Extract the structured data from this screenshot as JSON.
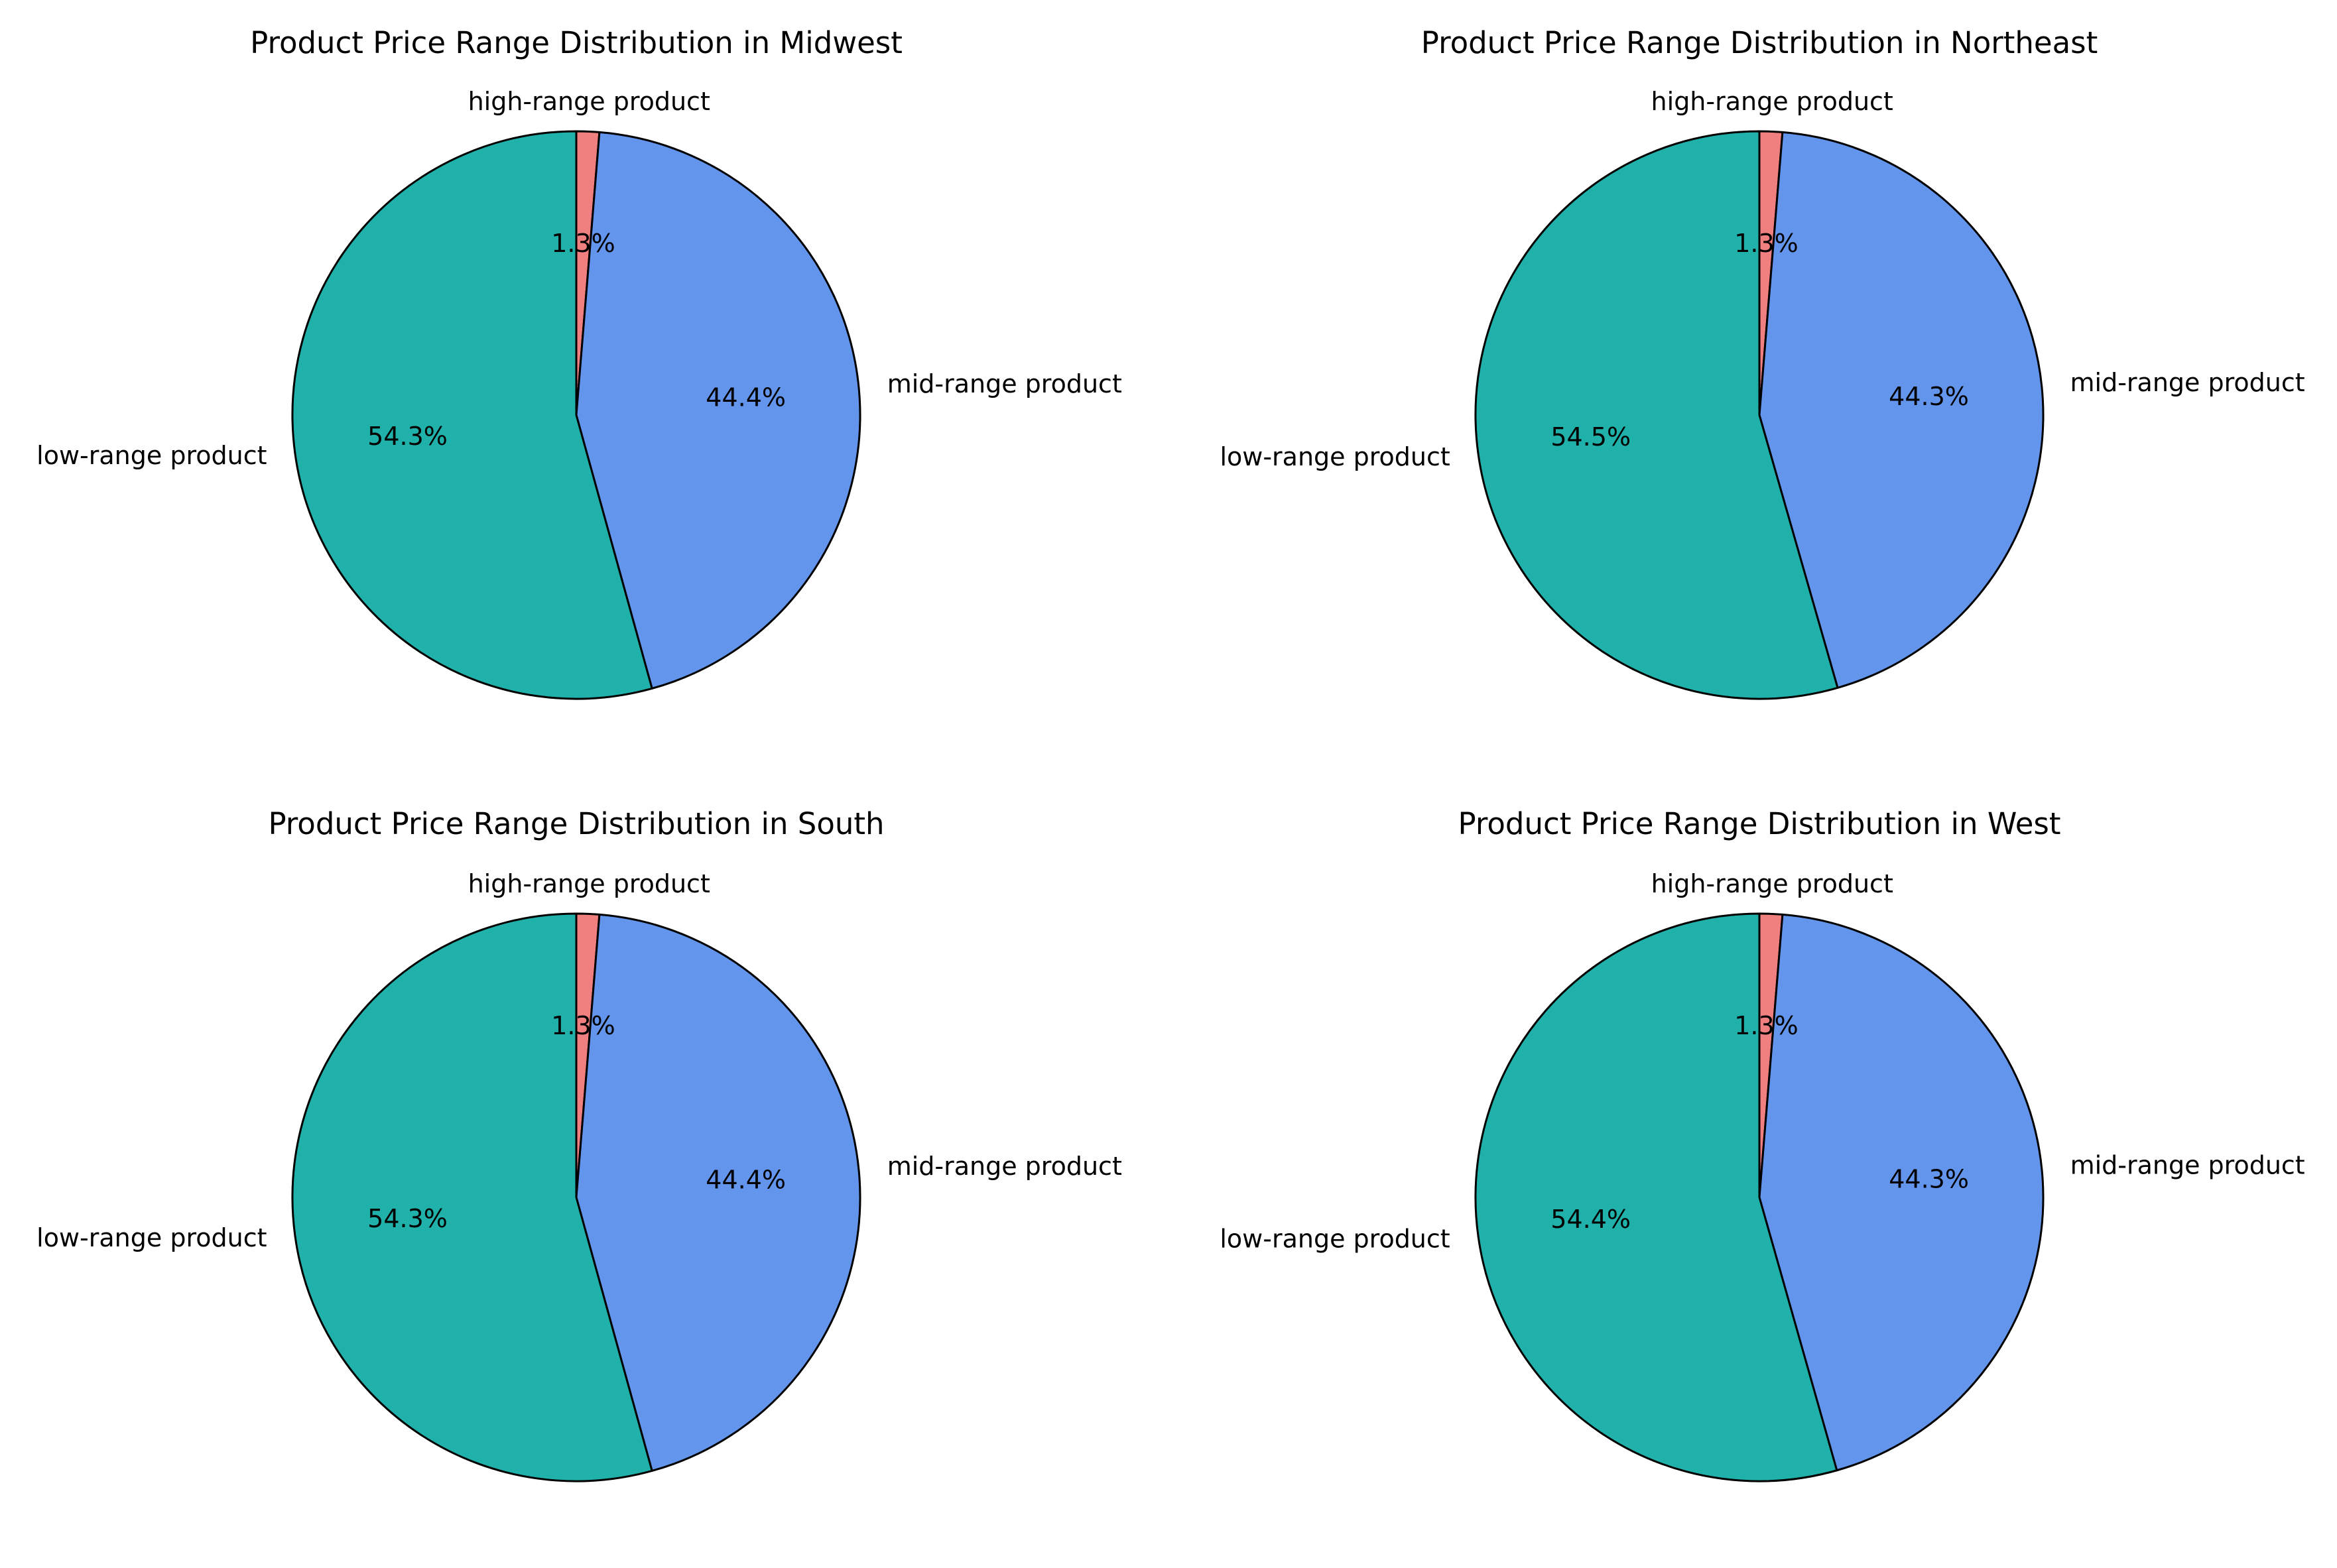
{
  "chart_data": [
    {
      "type": "pie",
      "title": "Product Price Range Distribution in Midwest",
      "categories": [
        "high-range product",
        "mid-range product",
        "low-range product"
      ],
      "values": [
        1.3,
        44.4,
        54.3
      ],
      "value_labels": [
        "1.3%",
        "44.4%",
        "54.3%"
      ],
      "colors": [
        "#F08080",
        "#6495ED",
        "#20B2AA"
      ],
      "start_angle_deg": 90,
      "direction": "clockwise"
    },
    {
      "type": "pie",
      "title": "Product Price Range Distribution in Northeast",
      "categories": [
        "high-range product",
        "mid-range product",
        "low-range product"
      ],
      "values": [
        1.3,
        44.3,
        54.5
      ],
      "value_labels": [
        "1.3%",
        "44.3%",
        "54.5%"
      ],
      "colors": [
        "#F08080",
        "#6495ED",
        "#20B2AA"
      ],
      "start_angle_deg": 90,
      "direction": "clockwise"
    },
    {
      "type": "pie",
      "title": "Product Price Range Distribution in South",
      "categories": [
        "high-range product",
        "mid-range product",
        "low-range product"
      ],
      "values": [
        1.3,
        44.4,
        54.3
      ],
      "value_labels": [
        "1.3%",
        "44.4%",
        "54.3%"
      ],
      "colors": [
        "#F08080",
        "#6495ED",
        "#20B2AA"
      ],
      "start_angle_deg": 90,
      "direction": "clockwise"
    },
    {
      "type": "pie",
      "title": "Product Price Range Distribution in West",
      "categories": [
        "high-range product",
        "mid-range product",
        "low-range product"
      ],
      "values": [
        1.3,
        44.3,
        54.4
      ],
      "value_labels": [
        "1.3%",
        "44.3%",
        "54.4%"
      ],
      "colors": [
        "#F08080",
        "#6495ED",
        "#20B2AA"
      ],
      "start_angle_deg": 90,
      "direction": "clockwise"
    }
  ]
}
